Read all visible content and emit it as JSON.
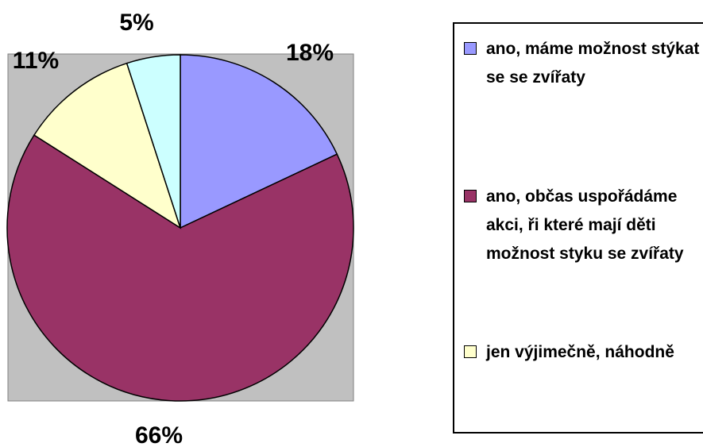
{
  "chart_data": {
    "type": "pie",
    "categories": [
      "ano, máme možnost stýkat se se zvířaty",
      "ano, občas uspořádáme akci, ři které mají děti možnost styku se zvířaty",
      "jen výjimečně, náhodně",
      null
    ],
    "values": [
      18,
      66,
      11,
      5
    ],
    "value_labels": [
      "18%",
      "66%",
      "11%",
      "5%"
    ],
    "colors": [
      "#9999ff",
      "#993366",
      "#ffffcc",
      "#ccffff"
    ],
    "legend": "right"
  }
}
